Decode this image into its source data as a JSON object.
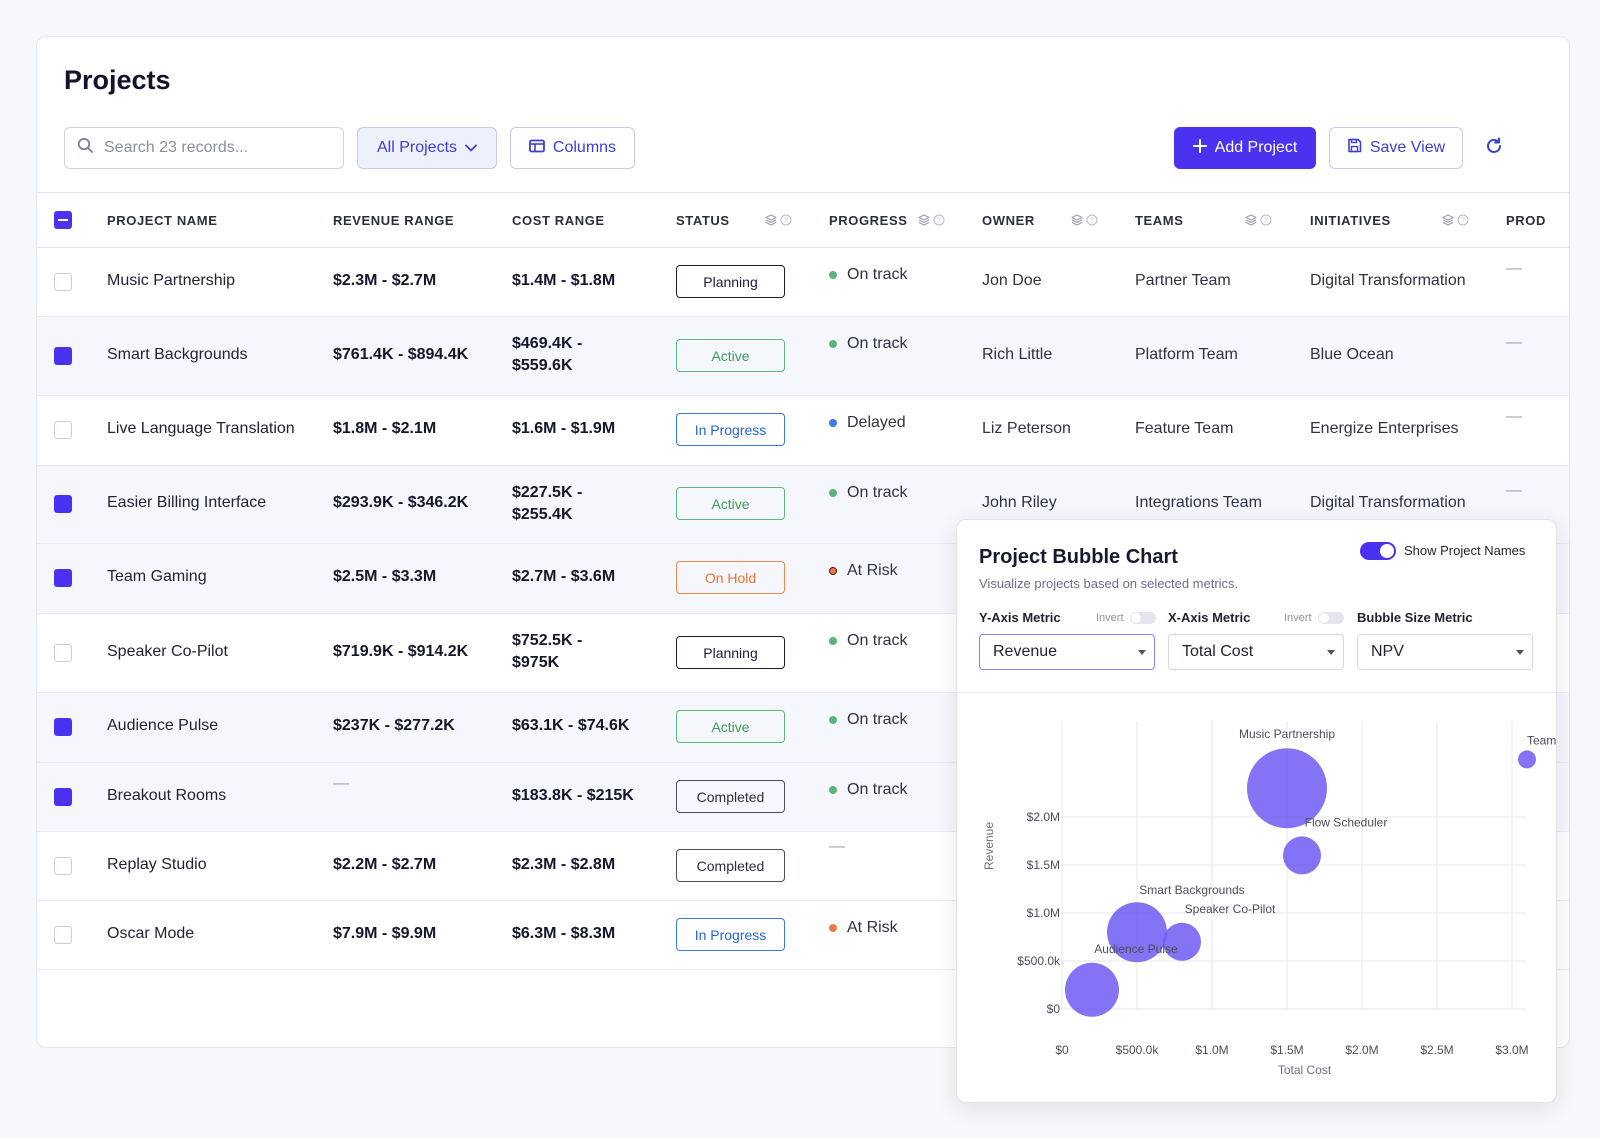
{
  "page": {
    "title": "Projects"
  },
  "toolbar": {
    "search_placeholder": "Search 23 records...",
    "filter_label": "All Projects",
    "columns_label": "Columns",
    "add_label": "Add Project",
    "save_label": "Save View"
  },
  "table": {
    "headers": {
      "name": "PROJECT NAME",
      "revenue": "REVENUE RANGE",
      "cost": "COST RANGE",
      "status": "STATUS",
      "progress": "PROGRESS",
      "owner": "OWNER",
      "teams": "TEAMS",
      "initiatives": "INITIATIVES",
      "prod": "PROD"
    },
    "rows": [
      {
        "selected": false,
        "name": "Music Partnership",
        "revenue": "$2.3M - $2.7M",
        "cost": "$1.4M - $1.8M",
        "status": "Planning",
        "progress": "On track",
        "owner": "Jon Doe",
        "team": "Partner Team",
        "initiative": "Digital Transformation"
      },
      {
        "selected": true,
        "name": "Smart Backgrounds",
        "revenue": "$761.4K - $894.4K",
        "cost": "$469.4K - $559.6K",
        "status": "Active",
        "progress": "On track",
        "owner": "Rich Little",
        "team": "Platform Team",
        "initiative": "Blue Ocean"
      },
      {
        "selected": false,
        "name": "Live Language Translation",
        "revenue": "$1.8M - $2.1M",
        "cost": "$1.6M - $1.9M",
        "status": "In Progress",
        "progress": "Delayed",
        "owner": "Liz Peterson",
        "team": "Feature Team",
        "initiative": "Energize Enterprises"
      },
      {
        "selected": true,
        "name": "Easier Billing Interface",
        "revenue": "$293.9K - $346.2K",
        "cost": "$227.5K - $255.4K",
        "status": "Active",
        "progress": "On track",
        "owner": "John Riley",
        "team": "Integrations Team",
        "initiative": "Digital Transformation"
      },
      {
        "selected": true,
        "name": "Team Gaming",
        "revenue": "$2.5M - $3.3M",
        "cost": "$2.7M - $3.6M",
        "status": "On Hold",
        "progress": "At Risk"
      },
      {
        "selected": false,
        "name": "Speaker Co-Pilot",
        "revenue": "$719.9K - $914.2K",
        "cost": "$752.5K - $975K",
        "status": "Planning",
        "progress": "On track"
      },
      {
        "selected": true,
        "name": "Audience Pulse",
        "revenue": "$237K - $277.2K",
        "cost": "$63.1K - $74.6K",
        "status": "Active",
        "progress": "On track"
      },
      {
        "selected": true,
        "name": "Breakout Rooms",
        "revenue": "—",
        "cost": "$183.8K - $215K",
        "status": "Completed",
        "progress": "On track"
      },
      {
        "selected": false,
        "name": "Replay Studio",
        "revenue": "$2.2M - $2.7M",
        "cost": "$2.3M - $2.8M",
        "status": "Completed",
        "progress": "—"
      },
      {
        "selected": false,
        "name": "Oscar Mode",
        "revenue": "$7.9M - $9.9M",
        "cost": "$6.3M - $8.3M",
        "status": "In Progress",
        "progress": "At Risk"
      }
    ],
    "empty_dash": "—"
  },
  "colors": {
    "accent": "#4a32f0",
    "bubble": "#6f5bf2",
    "on_track": "#5bb57a",
    "delayed": "#3b7ae6",
    "at_risk": "#f07a45"
  },
  "panel": {
    "title": "Project Bubble Chart",
    "subtitle": "Visualize projects based on selected metrics.",
    "toggle_label": "Show Project Names",
    "y_metric_label": "Y-Axis Metric",
    "x_metric_label": "X-Axis Metric",
    "size_metric_label": "Bubble Size Metric",
    "invert_label": "Invert",
    "y_metric": "Revenue",
    "x_metric": "Total Cost",
    "size_metric": "NPV"
  },
  "chart_data": {
    "type": "scatter",
    "xlabel": "Total Cost",
    "ylabel": "Revenue",
    "x_ticks": [
      "$0",
      "$500.0k",
      "$1.0M",
      "$1.5M",
      "$2.0M",
      "$2.5M",
      "$3.0M"
    ],
    "y_ticks": [
      "$0",
      "$500.0k",
      "$1.0M",
      "$1.5M",
      "$2.0M"
    ],
    "xlim": [
      0,
      3100000
    ],
    "ylim": [
      0,
      3000000
    ],
    "points": [
      {
        "label": "Music Partnership",
        "x": 1500000,
        "y": 2300000,
        "size": 40
      },
      {
        "label": "Team G",
        "x": 3100000,
        "y": 2600000,
        "size": 9
      },
      {
        "label": "Flow Scheduler",
        "x": 1600000,
        "y": 1600000,
        "size": 19
      },
      {
        "label": "Smart Backgrounds",
        "x": 500000,
        "y": 800000,
        "size": 30
      },
      {
        "label": "Speaker Co-Pilot",
        "x": 800000,
        "y": 700000,
        "size": 19
      },
      {
        "label": "Audience Pulse",
        "x": 200000,
        "y": 200000,
        "size": 27
      }
    ]
  }
}
